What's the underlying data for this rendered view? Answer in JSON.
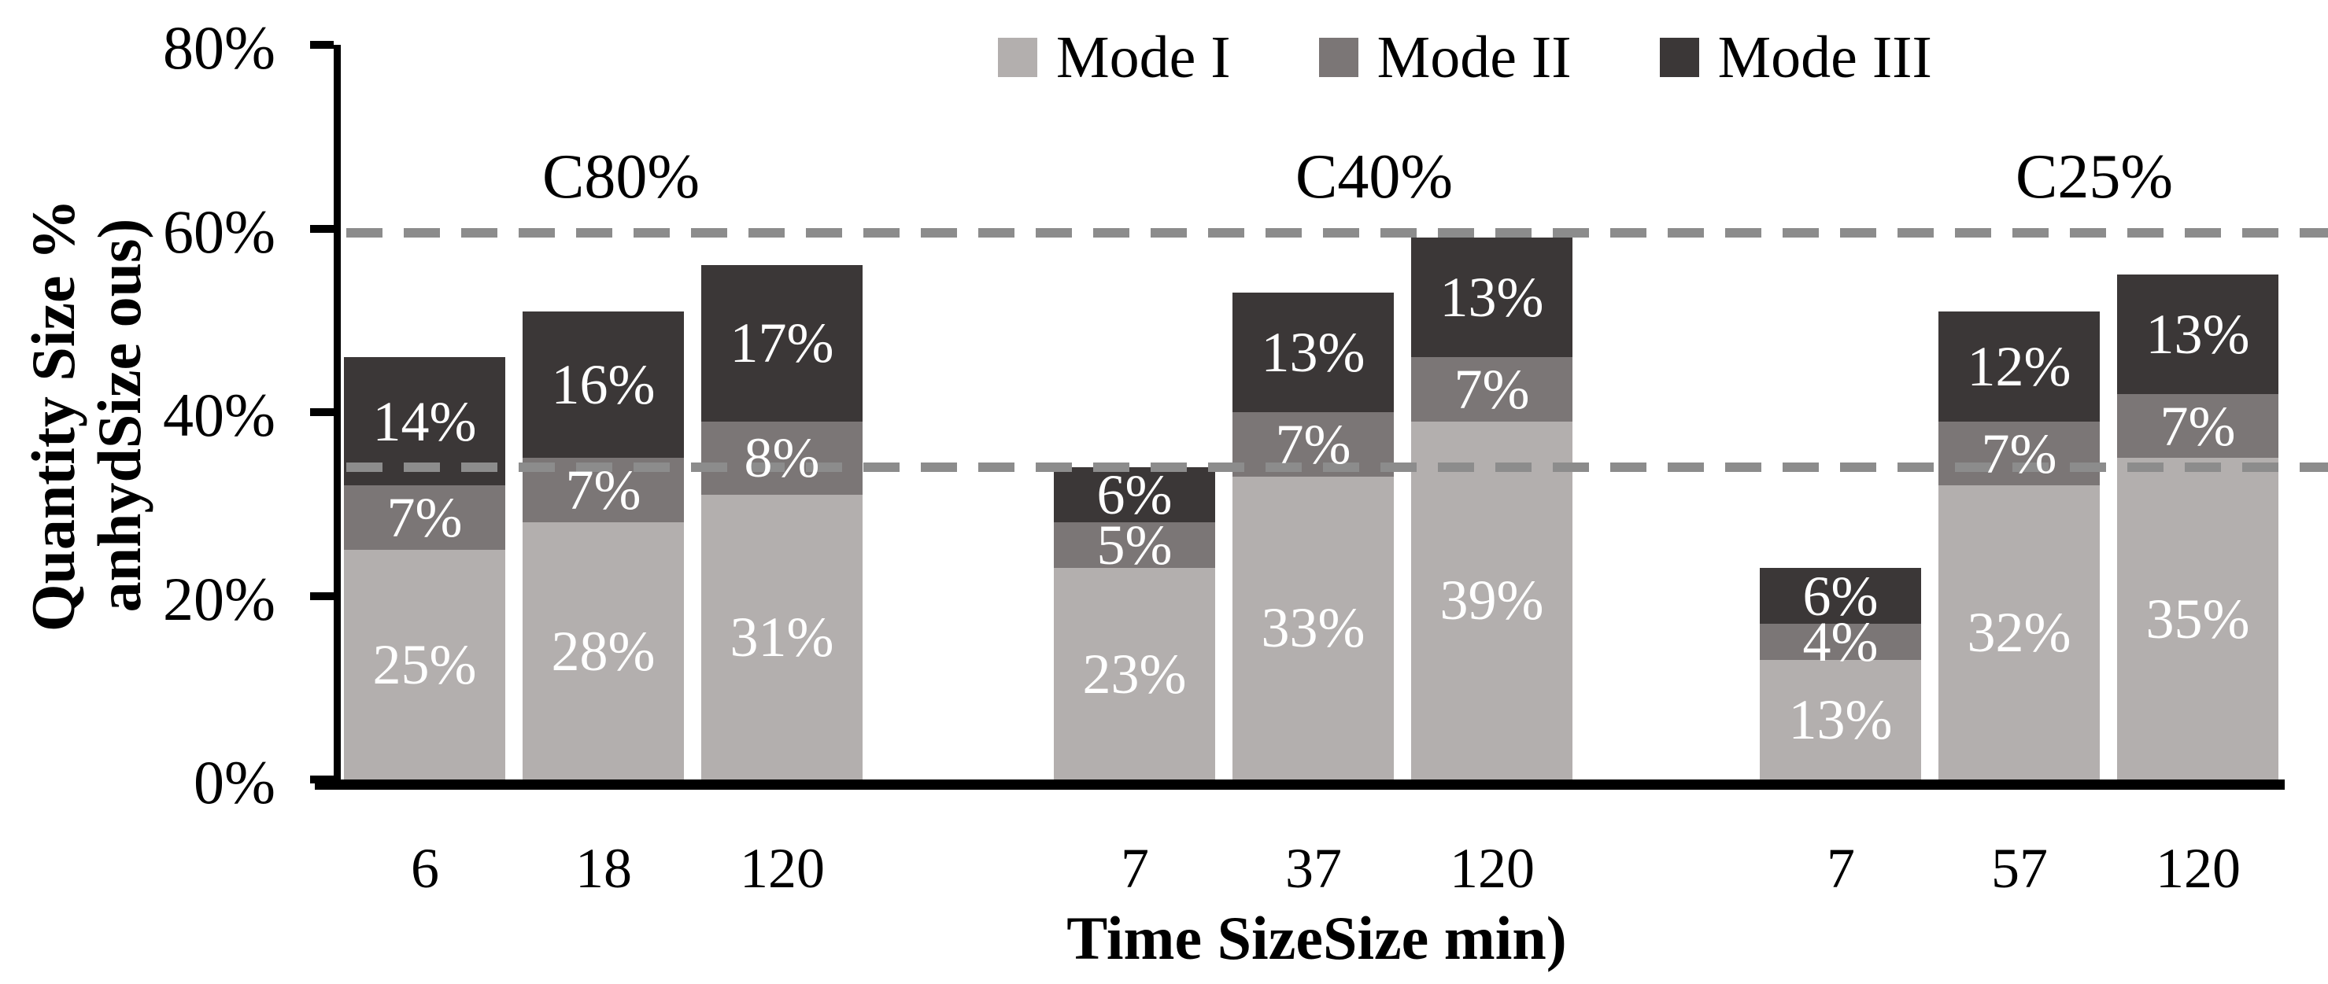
{
  "chart_data": {
    "type": "bar",
    "stacked": true,
    "title": "",
    "xlabel": "Time SizeSize min)",
    "ylabel_lines": [
      "Quantity Size %",
      "anhydSize ous)"
    ],
    "ylim": [
      0,
      80
    ],
    "yticks": [
      "0%",
      "20%",
      "40%",
      "60%",
      "80%"
    ],
    "grid": false,
    "legend_position": "top-center",
    "series": [
      {
        "name": "Mode I",
        "color": "#b3afae"
      },
      {
        "name": "Mode II",
        "color": "#7b7676"
      },
      {
        "name": "Mode III",
        "color": "#3b3737"
      }
    ],
    "groups": [
      {
        "label": "C80%",
        "bars": [
          {
            "x": "6",
            "values": [
              25,
              7,
              14
            ],
            "total": 46
          },
          {
            "x": "18",
            "values": [
              28,
              7,
              16
            ],
            "total": 51
          },
          {
            "x": "120",
            "values": [
              31,
              8,
              17
            ],
            "total": 56
          }
        ]
      },
      {
        "label": "C40%",
        "bars": [
          {
            "x": "7",
            "values": [
              23,
              5,
              6
            ],
            "total": 34
          },
          {
            "x": "37",
            "values": [
              33,
              7,
              13
            ],
            "total": 53
          },
          {
            "x": "120",
            "values": [
              39,
              7,
              13
            ],
            "total": 59
          }
        ]
      },
      {
        "label": "C25%",
        "bars": [
          {
            "x": "7",
            "values": [
              13,
              4,
              6
            ],
            "total": 23
          },
          {
            "x": "57",
            "values": [
              32,
              7,
              12
            ],
            "total": 51
          },
          {
            "x": "120",
            "values": [
              35,
              7,
              13
            ],
            "total": 55
          }
        ]
      }
    ],
    "segment_label_suffix": "%",
    "reference_lines": [
      {
        "value": 34,
        "style": "dashed",
        "color": "#8c8c8c"
      },
      {
        "value": 59.5,
        "style": "dashed",
        "color": "#8c8c8c"
      }
    ],
    "colors": {
      "axis": "#000000",
      "bar_label_text": "#ffffff",
      "dash": "#8c8c8c"
    }
  }
}
